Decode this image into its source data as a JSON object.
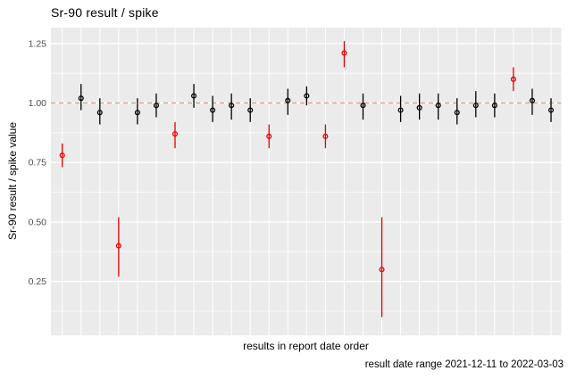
{
  "chart_data": {
    "type": "scatter",
    "subtype": "pointrange",
    "title": "Sr-90 result / spike",
    "xlabel": "results in report date order",
    "ylabel": "Sr-90 result / spike value",
    "caption": "result date range 2021-12-11 to 2022-03-03",
    "legend_position": "none",
    "grid": true,
    "panel_background": "#EBEBEB",
    "gridline_color": "#FFFFFF",
    "tick_text_color": "#4D4D4D",
    "point_colors": {
      "black": "#000000",
      "red": "#E60000"
    },
    "reference_line": {
      "value": 1.0,
      "style": "dashed",
      "color": "#E8947A"
    },
    "ylim": [
      0.03,
      1.32
    ],
    "ytick_values": [
      0.25,
      0.5,
      0.75,
      1.0,
      1.25
    ],
    "ytick_labels": [
      "0.25",
      "0.50",
      "0.75",
      "1.00",
      "1.25"
    ],
    "ytick_minor_values": [
      0.125,
      0.375,
      0.625,
      0.875,
      1.125
    ],
    "x_range": [
      1,
      27
    ],
    "points": [
      {
        "x": 1,
        "y": 0.78,
        "lo": 0.73,
        "hi": 0.83,
        "color": "red"
      },
      {
        "x": 2,
        "y": 1.02,
        "lo": 0.97,
        "hi": 1.08,
        "color": "black"
      },
      {
        "x": 3,
        "y": 0.96,
        "lo": 0.91,
        "hi": 1.02,
        "color": "black"
      },
      {
        "x": 4,
        "y": 0.4,
        "lo": 0.27,
        "hi": 0.52,
        "color": "red"
      },
      {
        "x": 5,
        "y": 0.96,
        "lo": 0.91,
        "hi": 1.02,
        "color": "black"
      },
      {
        "x": 6,
        "y": 0.99,
        "lo": 0.94,
        "hi": 1.04,
        "color": "black"
      },
      {
        "x": 7,
        "y": 0.87,
        "lo": 0.81,
        "hi": 0.92,
        "color": "red"
      },
      {
        "x": 8,
        "y": 1.03,
        "lo": 0.98,
        "hi": 1.08,
        "color": "black"
      },
      {
        "x": 9,
        "y": 0.97,
        "lo": 0.92,
        "hi": 1.03,
        "color": "black"
      },
      {
        "x": 10,
        "y": 0.99,
        "lo": 0.93,
        "hi": 1.04,
        "color": "black"
      },
      {
        "x": 11,
        "y": 0.97,
        "lo": 0.92,
        "hi": 1.02,
        "color": "black"
      },
      {
        "x": 12,
        "y": 0.86,
        "lo": 0.81,
        "hi": 0.91,
        "color": "red"
      },
      {
        "x": 13,
        "y": 1.01,
        "lo": 0.95,
        "hi": 1.06,
        "color": "black"
      },
      {
        "x": 14,
        "y": 1.03,
        "lo": 0.99,
        "hi": 1.07,
        "color": "black"
      },
      {
        "x": 15,
        "y": 0.86,
        "lo": 0.81,
        "hi": 0.91,
        "color": "red"
      },
      {
        "x": 16,
        "y": 1.21,
        "lo": 1.15,
        "hi": 1.26,
        "color": "red"
      },
      {
        "x": 17,
        "y": 0.99,
        "lo": 0.93,
        "hi": 1.04,
        "color": "black"
      },
      {
        "x": 18,
        "y": 0.3,
        "lo": 0.1,
        "hi": 0.52,
        "color": "red"
      },
      {
        "x": 19,
        "y": 0.97,
        "lo": 0.92,
        "hi": 1.03,
        "color": "black"
      },
      {
        "x": 20,
        "y": 0.98,
        "lo": 0.93,
        "hi": 1.04,
        "color": "black"
      },
      {
        "x": 21,
        "y": 0.99,
        "lo": 0.93,
        "hi": 1.04,
        "color": "black"
      },
      {
        "x": 22,
        "y": 0.96,
        "lo": 0.91,
        "hi": 1.02,
        "color": "black"
      },
      {
        "x": 23,
        "y": 0.99,
        "lo": 0.94,
        "hi": 1.05,
        "color": "black"
      },
      {
        "x": 24,
        "y": 0.99,
        "lo": 0.94,
        "hi": 1.04,
        "color": "black"
      },
      {
        "x": 25,
        "y": 1.1,
        "lo": 1.05,
        "hi": 1.15,
        "color": "red"
      },
      {
        "x": 26,
        "y": 1.01,
        "lo": 0.95,
        "hi": 1.06,
        "color": "black"
      },
      {
        "x": 27,
        "y": 0.97,
        "lo": 0.92,
        "hi": 1.02,
        "color": "black"
      }
    ]
  }
}
